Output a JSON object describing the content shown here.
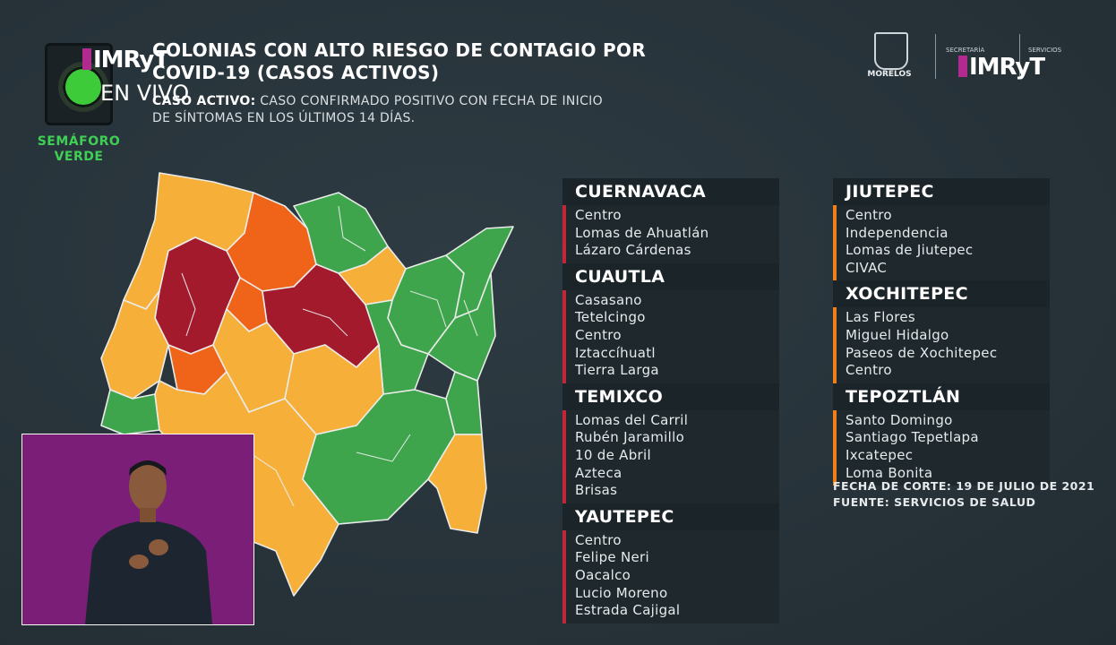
{
  "broadcast": {
    "logo_text": "IMRyT",
    "live_text": "EN VIVO"
  },
  "semaforo": {
    "label_line1": "SEMÁFORO",
    "label_line2": "VERDE",
    "color": "#3ecb3a"
  },
  "header": {
    "title_line1": "COLONIAS CON ALTO RIESGO DE CONTAGIO POR",
    "title_line2": "COVID-19 (CASOS ACTIVOS)",
    "subtitle_bold": "CASO ACTIVO:",
    "subtitle_rest": " CASO CONFIRMADO POSITIVO CON FECHA DE INICIO",
    "subtitle_line2": "DE SÍNTOMAS EN LOS ÚLTIMOS 14 DÍAS."
  },
  "logos": {
    "morelos": "MORELOS",
    "secretaria": "SECRETARÍA",
    "servicios": "SERVICIOS",
    "imryt": "IMRyT"
  },
  "colors": {
    "red": "#a31a2c",
    "orange": "#f0641a",
    "yellow": "#f6b03a",
    "green": "#3fa54c"
  },
  "municipalities_left": [
    {
      "name": "CUERNAVACA",
      "level": "red",
      "colonias": [
        "Centro",
        "Lomas de Ahuatlán",
        "Lázaro Cárdenas"
      ]
    },
    {
      "name": "CUAUTLA",
      "level": "red",
      "colonias": [
        "Casasano",
        "Tetelcingo",
        "Centro",
        "Iztaccíhuatl",
        "Tierra Larga"
      ]
    },
    {
      "name": "TEMIXCO",
      "level": "red",
      "colonias": [
        "Lomas del Carril",
        "Rubén Jaramillo",
        "10 de Abril",
        "Azteca",
        "Brisas"
      ]
    },
    {
      "name": "YAUTEPEC",
      "level": "red",
      "colonias": [
        "Centro",
        "Felipe Neri",
        "Oacalco",
        "Lucio Moreno",
        "Estrada Cajigal"
      ]
    }
  ],
  "municipalities_right": [
    {
      "name": "JIUTEPEC",
      "level": "orange",
      "colonias": [
        "Centro",
        "Independencia",
        "Lomas de Jiutepec",
        "CIVAC"
      ]
    },
    {
      "name": "XOCHITEPEC",
      "level": "orange",
      "colonias": [
        "Las Flores",
        "Miguel Hidalgo",
        "Paseos de Xochitepec",
        "Centro"
      ]
    },
    {
      "name": "TEPOZTLÁN",
      "level": "orange",
      "colonias": [
        "Santo Domingo",
        "Santiago Tepetlapa",
        "Ixcatepec",
        "Loma Bonita"
      ]
    }
  ],
  "footer": {
    "fecha": "FECHA DE CORTE: 19 DE JULIO DE 2021",
    "fuente": "FUENTE: SERVICIOS DE SALUD"
  }
}
